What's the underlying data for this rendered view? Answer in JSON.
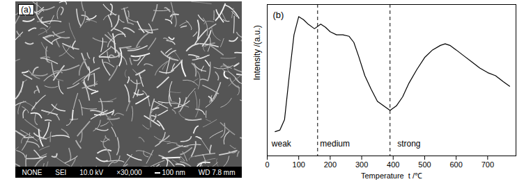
{
  "image_panel": {
    "label": "(a)",
    "info_bar": [
      "NONE",
      "SEI",
      "10.0 kV",
      "×30,000",
      "100 nm",
      "WD 7.8 mm"
    ]
  },
  "chart_data": {
    "type": "line",
    "panel_label": "(b)",
    "xlabel": "Temperature  t /℃",
    "ylabel": "Intensity /(a.u.)",
    "x": [
      25,
      40,
      55,
      70,
      85,
      100,
      115,
      130,
      150,
      170,
      185,
      200,
      220,
      240,
      260,
      275,
      290,
      310,
      330,
      350,
      370,
      390,
      410,
      430,
      450,
      475,
      500,
      525,
      550,
      565,
      580,
      600,
      625,
      650,
      675,
      700,
      725,
      750,
      770
    ],
    "values": [
      16,
      17,
      24,
      53,
      80,
      92,
      90,
      87,
      84,
      87,
      85,
      82,
      80,
      80,
      79,
      75,
      66,
      53,
      44,
      36,
      33,
      30,
      33,
      39,
      48,
      57,
      65,
      70,
      73,
      74,
      73,
      70,
      66,
      62,
      58,
      55,
      53,
      49,
      46
    ],
    "color": "#000000",
    "xlim": [
      0,
      790
    ],
    "xticks": [
      0,
      100,
      200,
      300,
      400,
      500,
      600,
      700
    ],
    "ylim": [
      0,
      100
    ],
    "tick_labels": "x",
    "reference_lines": {
      "x": [
        160,
        390
      ],
      "line_style": "dashed"
    },
    "annotations": [
      {
        "text": "weak",
        "x": 45,
        "y": 8
      },
      {
        "text": "medium",
        "x": 215,
        "y": 8
      },
      {
        "text": "strong",
        "x": 450,
        "y": 8
      }
    ]
  }
}
